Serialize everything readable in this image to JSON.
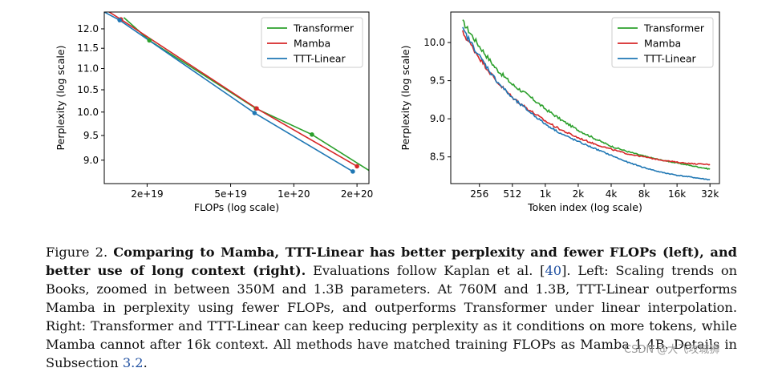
{
  "chart_data": [
    {
      "type": "line",
      "xscale": "log",
      "yscale": "log",
      "xlabel": "FLOPs (log scale)",
      "ylabel": "Perplexity (log scale)",
      "xlim": [
        12500000000000000000,
        228000000000000000000
      ],
      "ylim": [
        8.55,
        12.45
      ],
      "xticks": [
        {
          "value": 20000000000000000000,
          "label": "2e+19"
        },
        {
          "value": 50000000000000000000,
          "label": "5e+19"
        },
        {
          "value": 100000000000000000000,
          "label": "1e+20"
        },
        {
          "value": 200000000000000000000,
          "label": "2e+20"
        }
      ],
      "yticks": [
        {
          "value": 9.0,
          "label": "9.0"
        },
        {
          "value": 9.5,
          "label": "9.5"
        },
        {
          "value": 10.0,
          "label": "10.0"
        },
        {
          "value": 10.5,
          "label": "10.5"
        },
        {
          "value": 11.0,
          "label": "11.0"
        },
        {
          "value": 11.5,
          "label": "11.5"
        },
        {
          "value": 12.0,
          "label": "12.0"
        }
      ],
      "legend": "top-right",
      "series": [
        {
          "name": "Transformer",
          "color": "#2ca02c",
          "x": [
            15500000000000000000,
            20500000000000000000,
            66000000000000000000,
            122000000000000000000,
            228000000000000000000
          ],
          "y": [
            12.3,
            11.7,
            10.08,
            9.52,
            8.8
          ]
        },
        {
          "name": "Mamba",
          "color": "#d62728",
          "x": [
            13200000000000000000,
            15000000000000000000,
            66500000000000000000,
            200000000000000000000
          ],
          "y": [
            12.45,
            12.25,
            10.08,
            8.88
          ]
        },
        {
          "name": "TTT-Linear",
          "color": "#1f77b4",
          "x": [
            12500000000000000000,
            14800000000000000000,
            65000000000000000000,
            191000000000000000000
          ],
          "y": [
            12.45,
            12.23,
            9.98,
            8.78
          ]
        }
      ],
      "markers": [
        {
          "series": "Transformer",
          "x": [
            20500000000000000000,
            66000000000000000000,
            122000000000000000000
          ]
        },
        {
          "series": "Mamba",
          "x": [
            15000000000000000000,
            66500000000000000000,
            200000000000000000000
          ]
        },
        {
          "series": "TTT-Linear",
          "x": [
            14800000000000000000,
            65000000000000000000,
            191000000000000000000
          ]
        }
      ]
    },
    {
      "type": "line",
      "xscale": "log2",
      "xlabel": "Token index (log scale)",
      "ylabel": "Perplexity (log scale)",
      "xlim": [
        140,
        40000
      ],
      "ylim": [
        8.15,
        10.4
      ],
      "xticks": [
        {
          "value": 256,
          "label": "256"
        },
        {
          "value": 512,
          "label": "512"
        },
        {
          "value": 1024,
          "label": "1k"
        },
        {
          "value": 2048,
          "label": "2k"
        },
        {
          "value": 4096,
          "label": "4k"
        },
        {
          "value": 8192,
          "label": "8k"
        },
        {
          "value": 16384,
          "label": "16k"
        },
        {
          "value": 32768,
          "label": "32k"
        }
      ],
      "yticks": [
        {
          "value": 8.5,
          "label": "8.5"
        },
        {
          "value": 9.0,
          "label": "9.0"
        },
        {
          "value": 9.5,
          "label": "9.5"
        },
        {
          "value": 10.0,
          "label": "10.0"
        }
      ],
      "legend": "top-right",
      "series": [
        {
          "name": "Transformer",
          "color": "#2ca02c",
          "x": [
            180,
            256,
            362,
            512,
            724,
            1024,
            1448,
            2048,
            2896,
            4096,
            5793,
            8192,
            11585,
            16384,
            23170,
            32768
          ],
          "y": [
            10.27,
            9.95,
            9.66,
            9.45,
            9.3,
            9.13,
            8.98,
            8.85,
            8.74,
            8.64,
            8.57,
            8.51,
            8.46,
            8.42,
            8.38,
            8.34
          ]
        },
        {
          "name": "Mamba",
          "color": "#d62728",
          "x": [
            180,
            256,
            362,
            512,
            724,
            1024,
            1448,
            2048,
            2896,
            4096,
            5793,
            8192,
            11585,
            16384,
            23170,
            32768
          ],
          "y": [
            10.13,
            9.8,
            9.5,
            9.28,
            9.12,
            8.97,
            8.85,
            8.75,
            8.67,
            8.6,
            8.54,
            8.5,
            8.46,
            8.43,
            8.41,
            8.4
          ]
        },
        {
          "name": "TTT-Linear",
          "color": "#1f77b4",
          "x": [
            180,
            256,
            362,
            512,
            724,
            1024,
            1448,
            2048,
            2896,
            4096,
            5793,
            8192,
            11585,
            16384,
            23170,
            32768
          ],
          "y": [
            10.17,
            9.82,
            9.51,
            9.27,
            9.1,
            8.93,
            8.8,
            8.7,
            8.61,
            8.52,
            8.43,
            8.36,
            8.3,
            8.26,
            8.23,
            8.2
          ]
        }
      ]
    }
  ],
  "caption": {
    "label": "Figure 2.",
    "bold": "Comparing to Mamba, TTT-Linear has better perplexity and fewer FLOPs (left), and better use of long context (right).",
    "text_1": "Evaluations follow Kaplan et al. [",
    "ref_1": "40",
    "text_2": "]. Left: Scaling trends on Books, zoomed in between 350M and 1.3B parameters. At 760M and 1.3B, TTT-Linear outperforms Mamba in perplexity using fewer FLOPs, and outperforms Transformer under linear interpolation. Right: Transformer and TTT-Linear can keep reducing perplexity as it conditions on more tokens, while Mamba cannot after 16k context. All methods have matched training FLOPs as Mamba 1.4B. Details in Subsection",
    "ref_2": "3.2",
    "text_3": "."
  },
  "watermark": "CSDN @大飞攻城狮"
}
